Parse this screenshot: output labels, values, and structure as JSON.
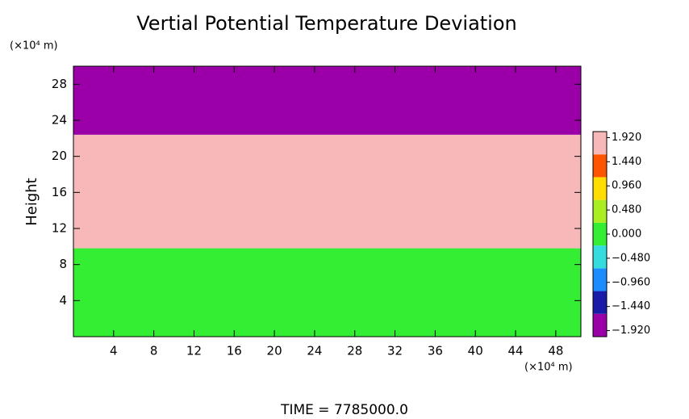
{
  "chart_data": {
    "type": "contour",
    "title": "Vertial Potential Temperature Deviation",
    "y_label": "Height",
    "y_unit": "(×10⁴ m)",
    "x_unit": "(×10⁴ m)",
    "footer": "TIME  =  7785000.0",
    "xlim": [
      0,
      50.5
    ],
    "ylim": [
      0,
      30
    ],
    "xticks": [
      4,
      8,
      12,
      16,
      20,
      24,
      28,
      32,
      36,
      40,
      44,
      48
    ],
    "yticks": [
      4,
      8,
      12,
      16,
      20,
      24,
      28
    ],
    "bands": [
      {
        "from": 0,
        "to": 9.8,
        "value": 0
      },
      {
        "from": 9.8,
        "to": 22.4,
        "value": 1.92
      },
      {
        "from": 22.4,
        "to": 30,
        "value": -1.92
      }
    ],
    "colorbar": {
      "lim": [
        -2.04,
        2.04
      ],
      "colors": [
        "#9b00a8",
        "#1a1aa8",
        "#1a8cff",
        "#33dddd",
        "#33ee33",
        "#aaee22",
        "#ffdd00",
        "#ff5500",
        "#f6b8b8"
      ],
      "ticks": [
        {
          "value": 1.92,
          "label": "1.920"
        },
        {
          "value": 1.44,
          "label": "1.440"
        },
        {
          "value": 0.96,
          "label": "0.960"
        },
        {
          "value": 0.48,
          "label": "0.480"
        },
        {
          "value": 0,
          "label": "0.000"
        },
        {
          "value": -0.48,
          "label": "−0.480"
        },
        {
          "value": -0.96,
          "label": "−0.960"
        },
        {
          "value": -1.44,
          "label": "−1.440"
        },
        {
          "value": -1.92,
          "label": "−1.920"
        }
      ]
    }
  }
}
